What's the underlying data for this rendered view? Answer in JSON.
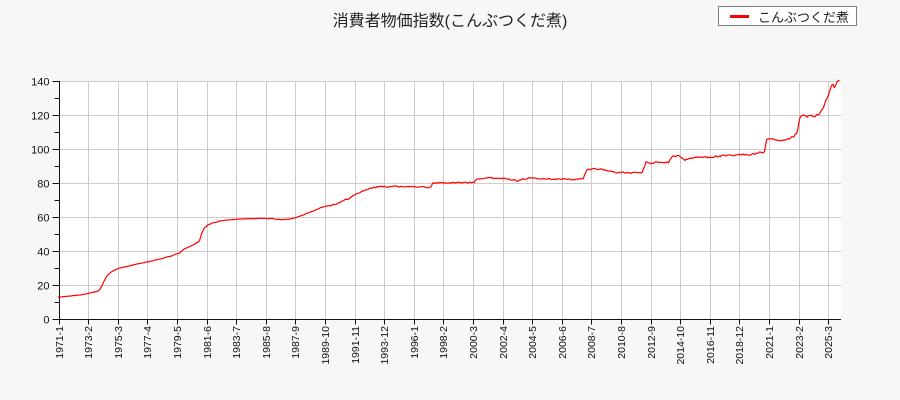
{
  "chart_data": {
    "type": "line",
    "title": "消費者物価指数(こんぶつくだ煮)",
    "legend": [
      "こんぶつくだ煮"
    ],
    "colors": {
      "background": "#f7f7f7",
      "plot_background": "#ffffff",
      "grid": "#cccccc",
      "axis": "#111111",
      "line": "#ff0000",
      "text": "#111111"
    },
    "grid": true,
    "legend_position": "top-right",
    "ylim": [
      0,
      140
    ],
    "y_tick_step": 20,
    "y_tick_labels": [
      "0",
      "20",
      "40",
      "60",
      "80",
      "100",
      "120",
      "140"
    ],
    "x_tick_labels": [
      "1971-1",
      "1973-2",
      "1975-3",
      "1977-4",
      "1979-5",
      "1981-6",
      "1983-7",
      "1985-8",
      "1987-9",
      "1989-10",
      "1991-11",
      "1993-12",
      "1996-1",
      "1998-2",
      "2000-3",
      "2002-4",
      "2004-5",
      "2006-6",
      "2008-7",
      "2010-8",
      "2012-9",
      "2014-10",
      "2016-11",
      "2018-12",
      "2021-1",
      "2023-2",
      "2025-3"
    ],
    "x_start": "1971-1",
    "x_end": "2025-12",
    "series": [
      {
        "name": "こんぶつくだ煮",
        "points": [
          [
            "1971-1",
            13.0
          ],
          [
            "1971-7",
            13.4
          ],
          [
            "1972-1",
            13.9
          ],
          [
            "1972-7",
            14.4
          ],
          [
            "1973-1",
            15.0
          ],
          [
            "1973-7",
            15.9
          ],
          [
            "1973-10",
            16.5
          ],
          [
            "1973-12",
            17.6
          ],
          [
            "1974-2",
            20.2
          ],
          [
            "1974-4",
            23.2
          ],
          [
            "1974-6",
            25.6
          ],
          [
            "1974-9",
            27.6
          ],
          [
            "1974-12",
            28.9
          ],
          [
            "1975-3",
            29.8
          ],
          [
            "1975-8",
            30.6
          ],
          [
            "1976-1",
            31.5
          ],
          [
            "1976-7",
            32.4
          ],
          [
            "1977-1",
            33.3
          ],
          [
            "1977-7",
            34.2
          ],
          [
            "1978-1",
            35.1
          ],
          [
            "1978-7",
            36.3
          ],
          [
            "1979-1",
            37.4
          ],
          [
            "1979-7",
            39.0
          ],
          [
            "1979-11",
            41.2
          ],
          [
            "1980-3",
            42.6
          ],
          [
            "1980-8",
            44.3
          ],
          [
            "1980-12",
            46.0
          ],
          [
            "1981-2",
            50.5
          ],
          [
            "1981-4",
            53.5
          ],
          [
            "1981-7",
            55.5
          ],
          [
            "1981-11",
            56.6
          ],
          [
            "1982-4",
            57.5
          ],
          [
            "1982-10",
            58.3
          ],
          [
            "1983-6",
            58.8
          ],
          [
            "1984-3",
            59.1
          ],
          [
            "1985-1",
            59.3
          ],
          [
            "1986-1",
            59.3
          ],
          [
            "1986-8",
            58.6
          ],
          [
            "1987-4",
            58.9
          ],
          [
            "1987-9",
            59.8
          ],
          [
            "1988-1",
            60.8
          ],
          [
            "1988-7",
            62.3
          ],
          [
            "1989-1",
            64.0
          ],
          [
            "1989-6",
            65.6
          ],
          [
            "1989-11",
            66.6
          ],
          [
            "1990-4",
            67.2
          ],
          [
            "1990-8",
            68.2
          ],
          [
            "1991-1",
            69.5
          ],
          [
            "1991-7",
            71.4
          ],
          [
            "1992-1",
            73.9
          ],
          [
            "1992-7",
            75.8
          ],
          [
            "1993-1",
            77.2
          ],
          [
            "1993-7",
            77.9
          ],
          [
            "1994-6",
            78.2
          ],
          [
            "1995-6",
            78.1
          ],
          [
            "1996-6",
            77.9
          ],
          [
            "1996-12",
            77.4
          ],
          [
            "1997-3",
            77.8
          ],
          [
            "1997-5",
            80.1
          ],
          [
            "1998-2",
            80.3
          ],
          [
            "1999-2",
            80.3
          ],
          [
            "2000-2",
            80.5
          ],
          [
            "2000-4",
            80.7
          ],
          [
            "2000-6",
            82.8
          ],
          [
            "2001-4",
            83.2
          ],
          [
            "2002-1",
            83.0
          ],
          [
            "2002-9",
            82.9
          ],
          [
            "2003-1",
            82.0
          ],
          [
            "2003-5",
            81.2
          ],
          [
            "2003-10",
            82.5
          ],
          [
            "2004-2",
            83.1
          ],
          [
            "2004-9",
            83.1
          ],
          [
            "2005-6",
            82.8
          ],
          [
            "2006-4",
            82.5
          ],
          [
            "2007-2",
            82.3
          ],
          [
            "2007-12",
            82.5
          ],
          [
            "2008-3",
            87.8
          ],
          [
            "2008-10",
            88.7
          ],
          [
            "2009-4",
            88.2
          ],
          [
            "2009-10",
            87.2
          ],
          [
            "2010-4",
            86.5
          ],
          [
            "2010-11",
            86.2
          ],
          [
            "2011-8",
            86.1
          ],
          [
            "2012-2",
            86.3
          ],
          [
            "2012-5",
            92.3
          ],
          [
            "2012-9",
            91.8
          ],
          [
            "2013-3",
            92.4
          ],
          [
            "2013-8",
            91.9
          ],
          [
            "2013-12",
            92.4
          ],
          [
            "2014-3",
            95.8
          ],
          [
            "2014-9",
            96.1
          ],
          [
            "2014-11",
            95.4
          ],
          [
            "2015-2",
            93.8
          ],
          [
            "2015-8",
            95.0
          ],
          [
            "2016-4",
            95.3
          ],
          [
            "2017-2",
            95.7
          ],
          [
            "2018-1",
            96.1
          ],
          [
            "2018-9",
            96.4
          ],
          [
            "2019-5",
            97.1
          ],
          [
            "2019-10",
            97.0
          ],
          [
            "2020-3",
            97.7
          ],
          [
            "2020-9",
            98.4
          ],
          [
            "2020-11",
            106.0
          ],
          [
            "2021-4",
            105.6
          ],
          [
            "2021-12",
            104.6
          ],
          [
            "2022-6",
            105.9
          ],
          [
            "2022-10",
            107.6
          ],
          [
            "2023-1",
            110.3
          ],
          [
            "2023-3",
            118.6
          ],
          [
            "2023-6",
            120.0
          ],
          [
            "2023-9",
            119.2
          ],
          [
            "2023-12",
            119.9
          ],
          [
            "2024-3",
            118.9
          ],
          [
            "2024-5",
            120.1
          ],
          [
            "2024-7",
            120.2
          ],
          [
            "2024-10",
            123.3
          ],
          [
            "2024-12",
            126.3
          ],
          [
            "2025-2",
            130.3
          ],
          [
            "2025-4",
            134.0
          ],
          [
            "2025-6",
            137.8
          ],
          [
            "2025-7",
            138.6
          ],
          [
            "2025-8",
            136.4
          ],
          [
            "2025-10",
            139.0
          ],
          [
            "2025-12",
            140.3
          ]
        ]
      }
    ]
  }
}
